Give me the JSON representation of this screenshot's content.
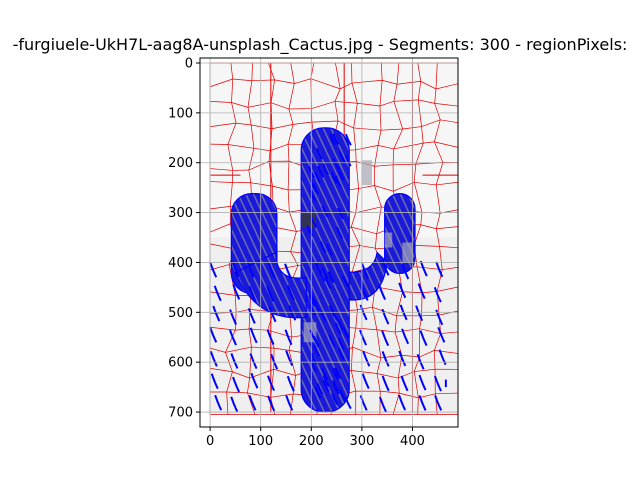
{
  "figure": {
    "title": "-furgiuele-UkH7L-aag8A-unsplash_Cactus.jpg - Segments: 300 - regionPixels:"
  },
  "chart_data": {
    "type": "image-plot",
    "title": "-furgiuele-UkH7L-aag8A-unsplash_Cactus.jpg - Segments: 300 - regionPixels:",
    "xlabel": "",
    "ylabel": "",
    "xlim": [
      -20,
      490
    ],
    "ylim": [
      730,
      -10
    ],
    "x_ticks": [
      0,
      100,
      200,
      300,
      400
    ],
    "y_ticks": [
      0,
      100,
      200,
      300,
      400,
      500,
      600,
      700
    ],
    "grid": true,
    "image_extent": {
      "x": [
        0,
        495
      ],
      "y": [
        0,
        705
      ]
    },
    "segments": 300,
    "colors": {
      "background": "#efefef",
      "cactus_fill": "#1a1ad8",
      "cactus_hatch": "#6b6bb0",
      "cactus_shadow": "#a8a8b8",
      "boundaries": "#e00000",
      "overlay_lines": "#0000ff",
      "grid": "#b0b0b0"
    }
  }
}
